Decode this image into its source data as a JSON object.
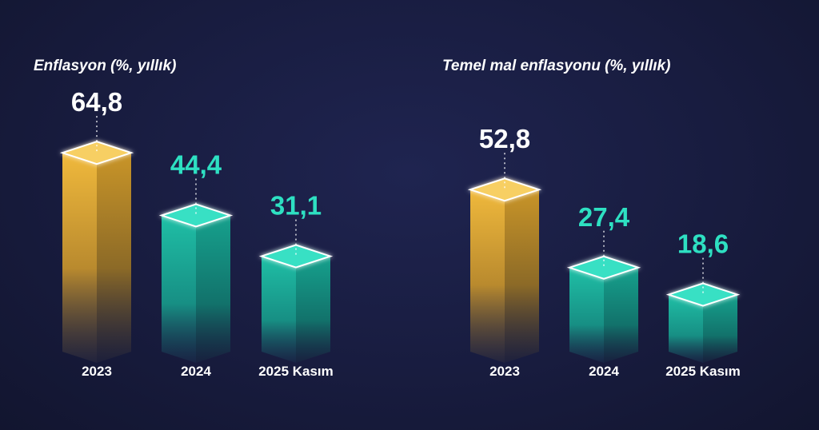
{
  "colors": {
    "highlight": "#e8b23a",
    "highlight_text": "#ffffff",
    "normal": "#22c3a8",
    "normal_text": "#2ee0c2",
    "background": "#181c3f"
  },
  "chart_data": [
    {
      "type": "bar",
      "title": "Enflasyon (%, yıllık)",
      "categories": [
        "2023",
        "2024",
        "2025 Kasım"
      ],
      "values": [
        64.8,
        44.4,
        31.1
      ],
      "value_labels": [
        "64,8",
        "44,4",
        "31,1"
      ],
      "highlight_index": 0,
      "xlabel": "",
      "ylabel": "",
      "ylim": [
        0,
        70
      ]
    },
    {
      "type": "bar",
      "title": "Temel mal enflasyonu (%, yıllık)",
      "categories": [
        "2023",
        "2024",
        "2025 Kasım"
      ],
      "values": [
        52.8,
        27.4,
        18.6
      ],
      "value_labels": [
        "52,8",
        "27,4",
        "18,6"
      ],
      "highlight_index": 0,
      "xlabel": "",
      "ylabel": "",
      "ylim": [
        0,
        70
      ]
    }
  ]
}
